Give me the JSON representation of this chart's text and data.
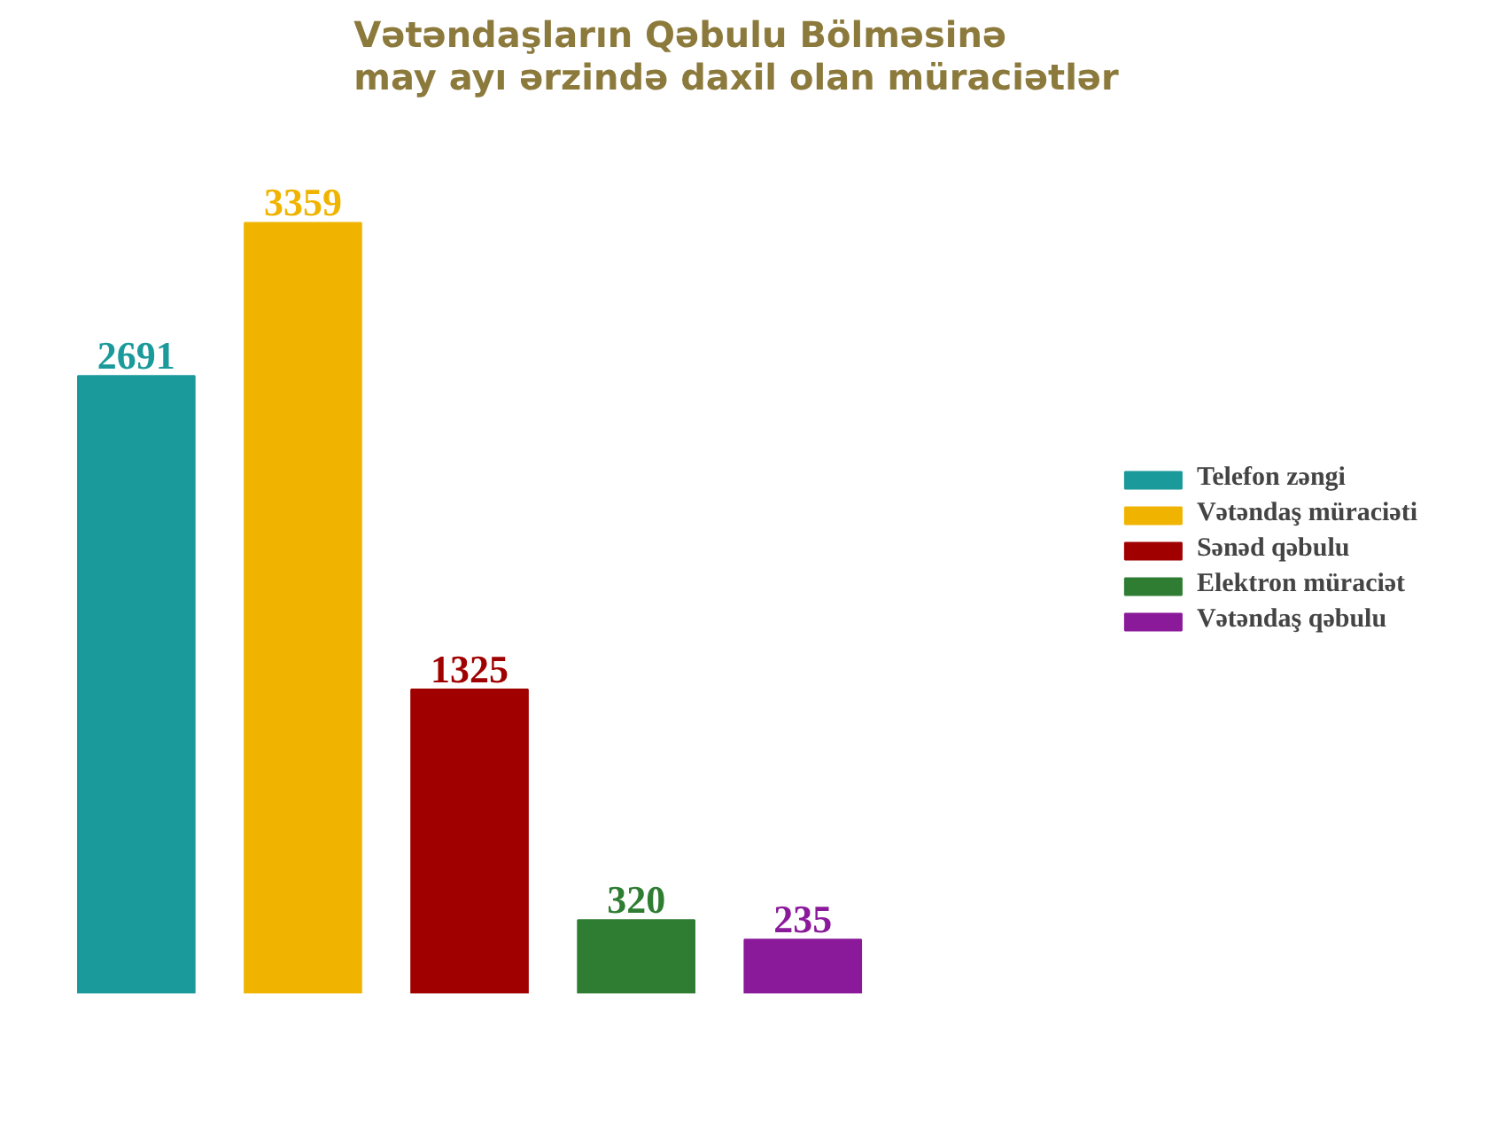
{
  "chart_data": {
    "type": "bar",
    "title": "Vətəndaşların Qəbulu Bölməsinə\nmay ayı ərzində daxil olan müraciətlər",
    "categories": [
      null,
      null,
      null,
      null,
      null
    ],
    "series": [
      {
        "name": "Telefon zəngi",
        "color": "#1a9a9a",
        "values": [
          2691,
          null,
          null,
          null,
          null
        ]
      },
      {
        "name": "Vətəndaş müraciəti",
        "color": "#f0b400",
        "values": [
          null,
          3359,
          null,
          null,
          null
        ]
      },
      {
        "name": "Sənəd qəbulu",
        "color": "#a00000",
        "values": [
          null,
          null,
          1325,
          null,
          null
        ]
      },
      {
        "name": "Elektron müraciət",
        "color": "#2e7d32",
        "values": [
          null,
          null,
          null,
          320,
          null
        ]
      },
      {
        "name": "Vətəndaş qəbulu",
        "color": "#8b1a9b",
        "values": [
          null,
          null,
          null,
          null,
          235
        ]
      }
    ],
    "stacked": true,
    "data_labels": true,
    "tick_labels": false,
    "grid": false,
    "legend": "right"
  }
}
